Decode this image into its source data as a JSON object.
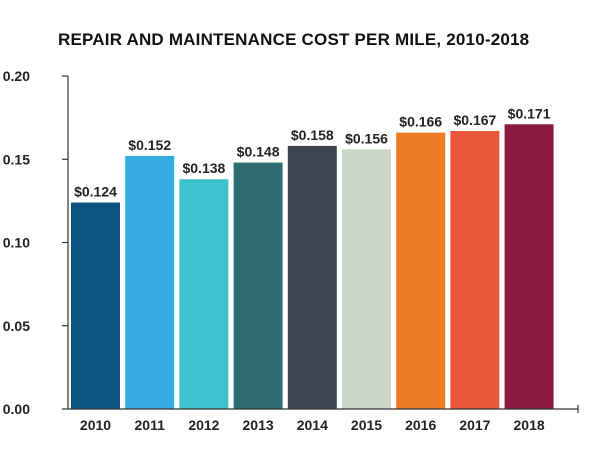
{
  "chart_data": {
    "type": "bar",
    "title": "REPAIR AND MAINTENANCE COST PER MILE, 2010-2018",
    "categories": [
      "2010",
      "2011",
      "2012",
      "2013",
      "2014",
      "2015",
      "2016",
      "2017",
      "2018"
    ],
    "values": [
      0.124,
      0.152,
      0.138,
      0.148,
      0.158,
      0.156,
      0.166,
      0.167,
      0.171
    ],
    "data_labels": [
      "$0.124",
      "$0.152",
      "$0.138",
      "$0.148",
      "$0.158",
      "$0.156",
      "$0.166",
      "$0.167",
      "$0.171"
    ],
    "colors": [
      "#0b5481",
      "#36ade1",
      "#3cc3cd",
      "#2f6e70",
      "#3b4450",
      "#ccd6c8",
      "#ee7c24",
      "#ea573a",
      "#8b1a3f"
    ],
    "y_ticks": [
      0.0,
      0.05,
      0.1,
      0.15,
      0.2
    ],
    "y_tick_labels": [
      "0.00",
      "0.05",
      "0.10",
      "0.15",
      "0.20"
    ],
    "xlabel": "",
    "ylabel": "",
    "ylim": [
      0,
      0.2
    ],
    "grid": false,
    "legend": false
  }
}
